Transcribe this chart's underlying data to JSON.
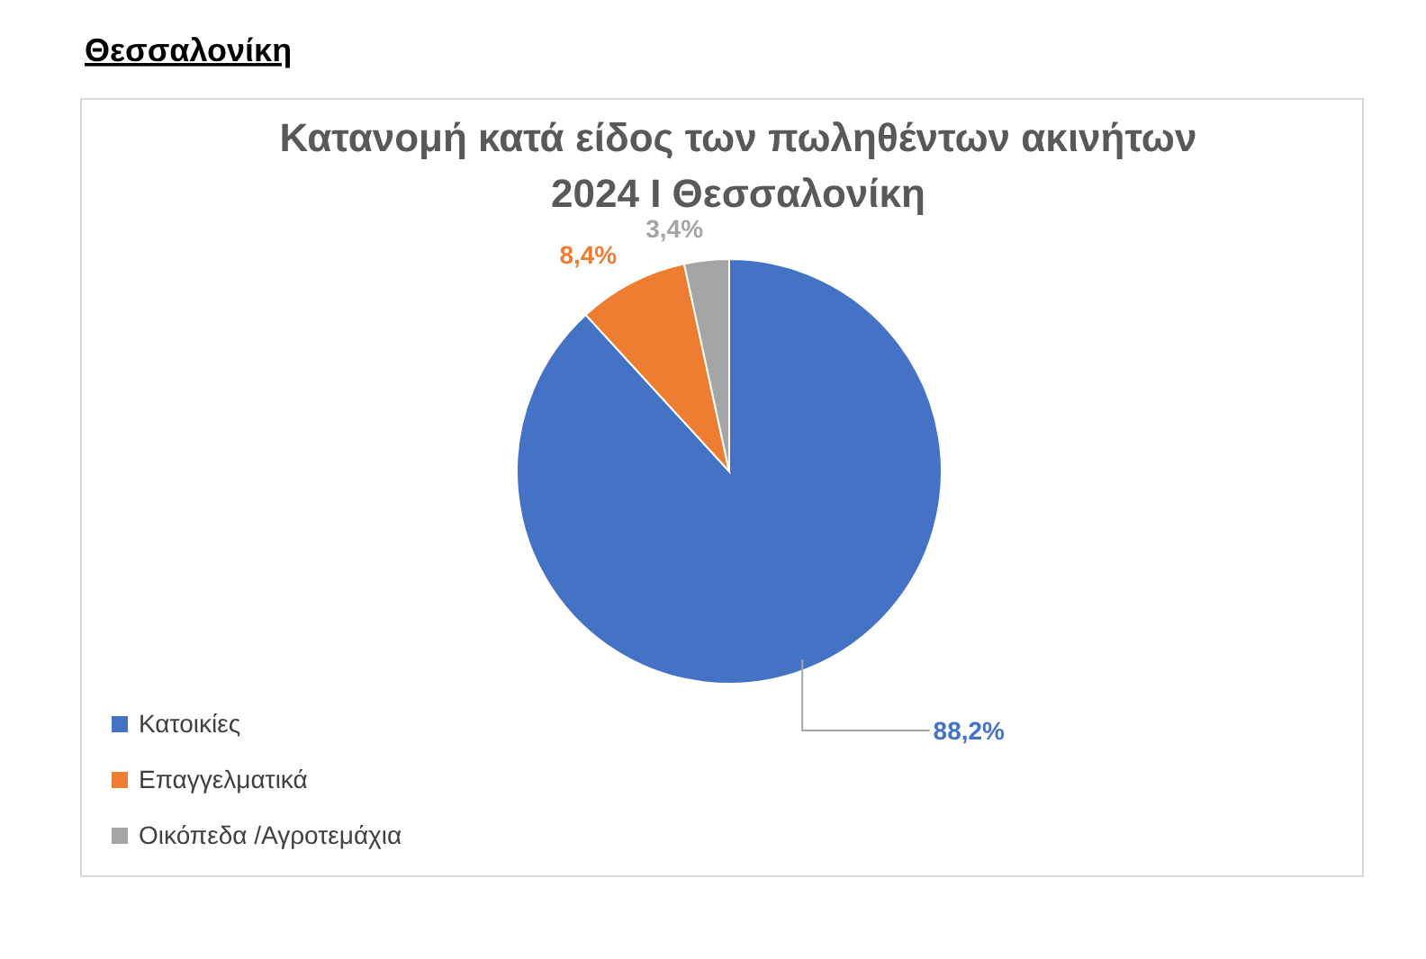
{
  "chart_data": {
    "type": "pie",
    "title": "Κατανομή κατά είδος των πωληθέντων ακινήτων 2024 Ι Θεσσαλονίκη",
    "annotations": [
      "Θεσσαλονίκη"
    ],
    "categories": [
      "Κατοικίες",
      "Επαγγελματικά",
      "Οικόπεδα /Αγροτεμάχια"
    ],
    "values": [
      88.2,
      8.4,
      3.4
    ],
    "value_labels": [
      "88,2%",
      "8,4%",
      "3,4%"
    ],
    "colors": [
      "#4472c4",
      "#ed7d31",
      "#a5a5a5"
    ],
    "legend": "bottom left"
  }
}
